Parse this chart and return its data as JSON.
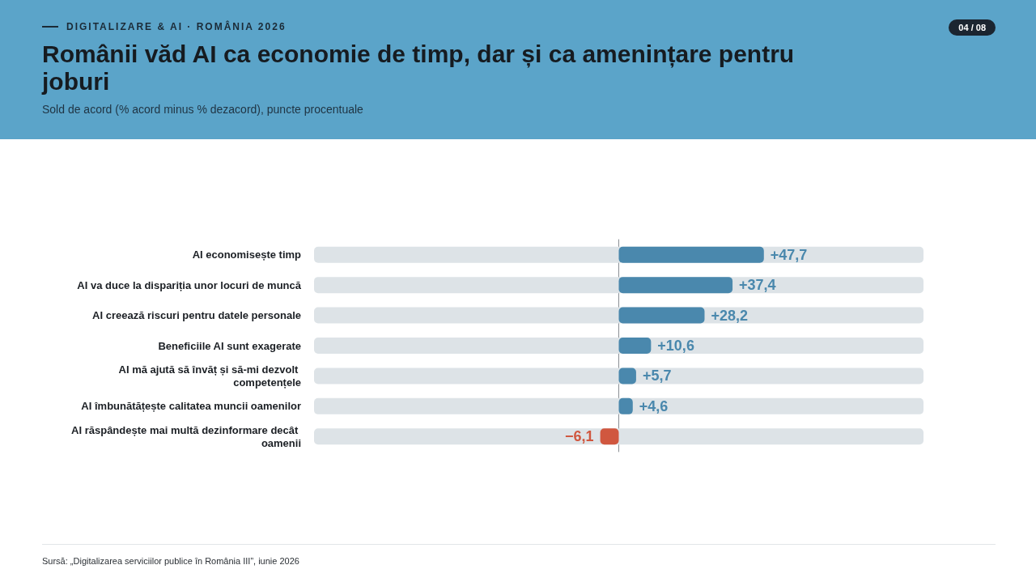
{
  "chart_data": {
    "type": "bar",
    "orientation": "horizontal",
    "title": "Românii văd AI ca economie de timp, dar și ca amenințare pentru joburi",
    "subtitle": "Sold de acord (% acord minus % dezacord), puncte procentuale",
    "annotations": [
      "DIGITALIZARE & AI · ROMÂNIA 2026",
      "04 / 08",
      "Sursă: „Digitalizarea serviciilor publice în România III”, iunie 2026"
    ],
    "categories": [
      "AI economisește timp",
      "AI va duce la dispariția unor locuri de muncă",
      "AI creează riscuri pentru datele personale",
      "Beneficiile AI sunt exagerate",
      "AI mă ajută să învăț și să-mi dezvolt competențele",
      "AI îmbunătățește calitatea muncii oamenilor",
      "AI răspândește mai multă dezinformare decât oamenii"
    ],
    "values": [
      47.7,
      37.4,
      28.2,
      10.6,
      5.7,
      4.6,
      -6.1
    ],
    "value_labels": [
      "+47,7",
      "+37,4",
      "+28,2",
      "+10,6",
      "+5,7",
      "+4,6",
      "−6,1"
    ],
    "colors": [
      "#4a88ad",
      "#4a88ad",
      "#4a88ad",
      "#4a88ad",
      "#4a88ad",
      "#4a88ad",
      "#d0573f"
    ],
    "grid": false
  }
}
